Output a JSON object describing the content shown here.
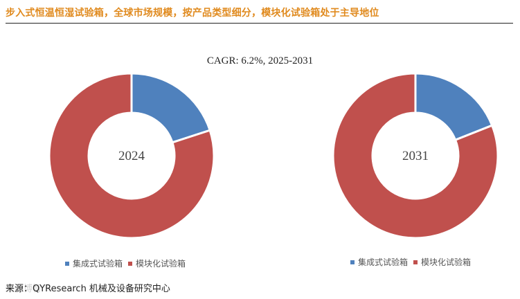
{
  "header": {
    "title": "步入式恒温恒湿试验箱，全球市场规模，按产品类型细分，模块化试验箱处于主导地位"
  },
  "chart_data": {
    "type": "donut",
    "subtitle": "CAGR:   6.2%, 2025-2031",
    "series_names": [
      "集成式试验箱",
      "模块化试验箱"
    ],
    "colors": [
      "#4f81bd",
      "#c0504d"
    ],
    "charts": [
      {
        "year": "2024",
        "center_label": "2024",
        "values": [
          0.2,
          0.8
        ]
      },
      {
        "year": "2031",
        "center_label": "2031",
        "values": [
          0.19,
          0.81
        ]
      }
    ]
  },
  "legend": {
    "left": [
      "集成式试验箱",
      "模块化试验箱"
    ],
    "right": [
      "集成式试验箱",
      "模块化试验箱"
    ]
  },
  "footer": {
    "source": "来源：QYResearch 机械及设备研究中心",
    "watermark": "恒州博智"
  }
}
